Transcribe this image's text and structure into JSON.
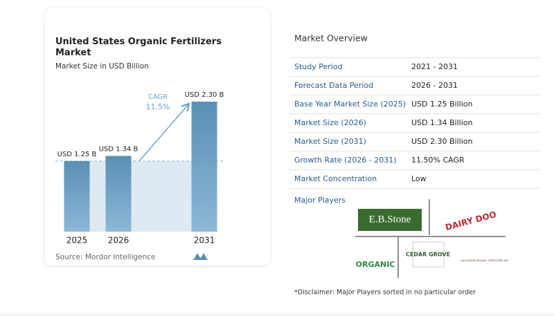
{
  "chart_data": {
    "type": "bar",
    "title": "United States Organic Fertilizers Market",
    "subtitle": "Market Size in USD Billion",
    "categories": [
      "2025",
      "2026",
      "2031"
    ],
    "values": [
      1.25,
      1.34,
      2.3
    ],
    "value_labels": [
      "USD 1.25 B",
      "USD 1.34 B",
      "USD 2.30 B"
    ],
    "annotation": "CAGR",
    "annotation_value": "11.5%",
    "source": "Source: Mordor Intelligence",
    "color": "#5f95bb",
    "ylim": [
      0,
      2.3
    ]
  },
  "market_overview": {
    "title": "Market Overview",
    "rows": [
      [
        "Study Period",
        "2021 - 2031"
      ],
      [
        "Forecast Data Period",
        "2026 - 2031"
      ],
      [
        "Base Year Market Size (2025)",
        "USD 1.25 Billion"
      ],
      [
        "Market Size (2026)",
        "USD 1.34 Billion"
      ],
      [
        "Market Size (2031)",
        "USD 2.30 Billion"
      ],
      [
        "Growth Rate (2026 - 2031)",
        "11.50% CAGR"
      ],
      [
        "Market Concentration",
        "Low"
      ]
    ]
  },
  "major_players": {
    "title": "Major Players",
    "logos": [
      "E.B.Stone",
      "DAIRY DOO",
      "CEDAR GROVE",
      "ORGANIC",
      "CALIFORNIA ORGANIC FERTILIZERS INC."
    ]
  },
  "disclaimer": "*Disclaimer: Major Players sorted in no particular order"
}
